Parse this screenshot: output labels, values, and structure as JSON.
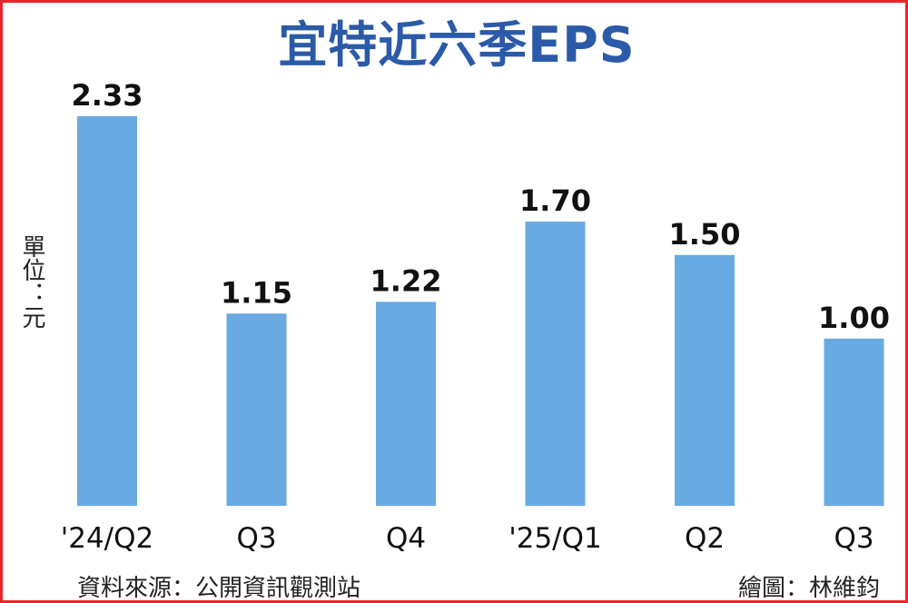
{
  "title": "宜特近六季EPS",
  "unit_label": "單位：元",
  "source": "資料來源：公開資訊觀測站",
  "credit": "繪圖：林維鈞",
  "colors": {
    "bar": "#6aaae2",
    "title": "#2b5aa8",
    "border": "#e8262b"
  },
  "chart_data": {
    "type": "bar",
    "categories": [
      "'24/Q2",
      "Q3",
      "Q4",
      "'25/Q1",
      "Q2",
      "Q3"
    ],
    "values": [
      2.33,
      1.15,
      1.22,
      1.7,
      1.5,
      1.0
    ],
    "value_labels": [
      "2.33",
      "1.15",
      "1.22",
      "1.70",
      "1.50",
      "1.00"
    ],
    "title": "宜特近六季EPS",
    "xlabel": "",
    "ylabel": "單位：元",
    "ylim": [
      0,
      2.33
    ],
    "grid": false,
    "legend": "none"
  }
}
